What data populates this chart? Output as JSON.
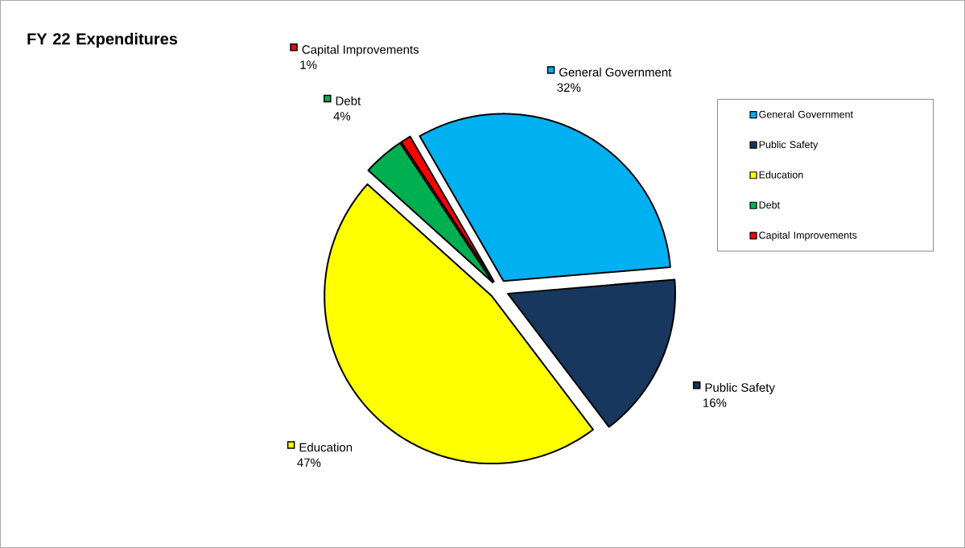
{
  "chart_data": {
    "type": "pie",
    "title": "FY 22 Expenditures",
    "categories": [
      "General Government",
      "Public Safety",
      "Education",
      "Debt",
      "Capital Improvements"
    ],
    "values": [
      32,
      16,
      47,
      4,
      1
    ],
    "value_labels": [
      "32%",
      "16%",
      "47%",
      "4%",
      "1%"
    ],
    "colors": [
      "#00b0f0",
      "#17375e",
      "#ffff00",
      "#00b050",
      "#ff0000"
    ],
    "legend": "right"
  }
}
